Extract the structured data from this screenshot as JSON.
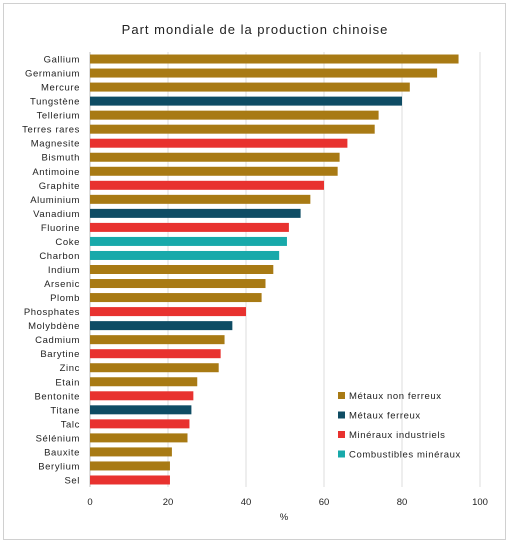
{
  "chart_data": {
    "type": "bar",
    "orientation": "horizontal",
    "title": "Part mondiale de la production chinoise",
    "xlabel": "%",
    "ylabel": "",
    "xlim": [
      0,
      100
    ],
    "xticks": [
      0,
      20,
      40,
      60,
      80,
      100
    ],
    "grid": "vertical",
    "legend_position": "bottom-right",
    "categories": [
      "Gallium",
      "Germanium",
      "Mercure",
      "Tungstène",
      "Tellerium",
      "Terres rares",
      "Magnesite",
      "Bismuth",
      "Antimoine",
      "Graphite",
      "Aluminium",
      "Vanadium",
      "Fluorine",
      "Coke",
      "Charbon",
      "Indium",
      "Arsenic",
      "Plomb",
      "Phosphates",
      "Molybdène",
      "Cadmium",
      "Barytine",
      "Zinc",
      "Etain",
      "Bentonite",
      "Titane",
      "Talc",
      "Sélénium",
      "Bauxite",
      "Berylium",
      "Sel"
    ],
    "values": [
      94.5,
      89,
      82,
      80,
      74,
      73,
      66,
      64,
      63.5,
      60,
      56.5,
      54,
      51,
      50.5,
      48.5,
      47,
      45,
      44,
      40,
      36.5,
      34.5,
      33.5,
      33,
      27.5,
      26.5,
      26,
      25.5,
      25,
      21,
      20.5,
      20.5
    ],
    "groups": [
      "nf",
      "nf",
      "nf",
      "f",
      "nf",
      "nf",
      "mi",
      "nf",
      "nf",
      "mi",
      "nf",
      "f",
      "mi",
      "cm",
      "cm",
      "nf",
      "nf",
      "nf",
      "mi",
      "f",
      "nf",
      "mi",
      "nf",
      "nf",
      "mi",
      "f",
      "mi",
      "nf",
      "nf",
      "nf",
      "mi"
    ],
    "legend": [
      {
        "key": "nf",
        "name": "Métaux non ferreux",
        "color": "#A87A14"
      },
      {
        "key": "f",
        "name": "Métaux ferreux",
        "color": "#0E4C64"
      },
      {
        "key": "mi",
        "name": "Minéraux industriels",
        "color": "#E8322F"
      },
      {
        "key": "cm",
        "name": "Combustibles minéraux",
        "color": "#18A9AA"
      }
    ]
  }
}
